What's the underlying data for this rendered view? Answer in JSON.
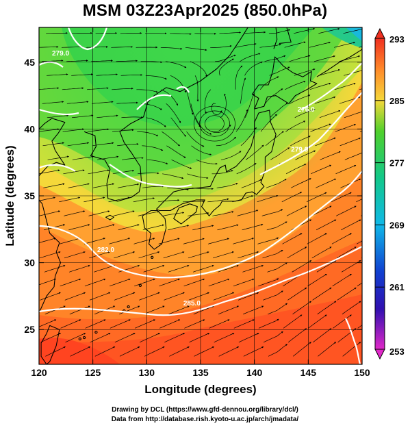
{
  "title": "MSM 03Z23Apr2025 (850.0hPa)",
  "xlabel": "Longitude (degrees)",
  "ylabel": "Latitude  (degrees)",
  "x_ticks": [
    120,
    125,
    130,
    135,
    140,
    145,
    150
  ],
  "y_ticks": [
    25,
    30,
    35,
    40,
    45
  ],
  "x_range": [
    120,
    150
  ],
  "y_range": [
    22.4,
    47.6
  ],
  "colorbar": {
    "min": 253,
    "max": 293,
    "labels": [
      293,
      285,
      277,
      269,
      261,
      253
    ]
  },
  "contours": [
    {
      "label": "285.0",
      "lon": 134.2,
      "lat": 26.8
    },
    {
      "label": "282.0",
      "lon": 126.2,
      "lat": 30.8
    },
    {
      "label": "279.0",
      "lon": 144.2,
      "lat": 38.3
    },
    {
      "label": "279.0",
      "lon": 122.0,
      "lat": 45.5
    },
    {
      "label": "276.0",
      "lon": 144.8,
      "lat": 41.3
    }
  ],
  "credits": [
    "Drawing by DCL (https://www.gfd-dennou.org/library/dcl/)",
    "Data from http://database.rish.kyoto-u.ac.jp/arch/jmadata/"
  ],
  "colors": {
    "frame": "#000000",
    "contour": "#ffffff",
    "coast": "#000000"
  }
}
